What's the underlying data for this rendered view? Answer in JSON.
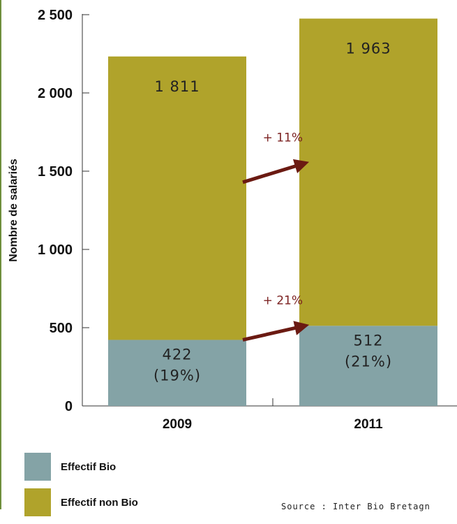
{
  "chart_data": {
    "type": "bar",
    "stacked": true,
    "categories": [
      "2009",
      "2011"
    ],
    "series": [
      {
        "name": "Effectif Bio",
        "color": "#84a3a6",
        "values": [
          422,
          512
        ],
        "labels": [
          "422\n(19%)",
          "512\n(21%)"
        ]
      },
      {
        "name": "Effectif non Bio",
        "color": "#b0a32b",
        "values": [
          1811,
          1963
        ],
        "labels": [
          "1 811",
          "1 963"
        ]
      }
    ],
    "ylabel": "Nombre de salariés",
    "ylim": [
      0,
      2500
    ],
    "yticks": [
      0,
      500,
      1000,
      1500,
      2000,
      2500
    ],
    "ytick_labels": [
      "0",
      "500",
      "1 000",
      "1 500",
      "2 000",
      "2 500"
    ],
    "grid": false,
    "annotations": [
      {
        "text": "+ 11%",
        "series": "Effectif non Bio",
        "color": "#6b1a12"
      },
      {
        "text": "+ 21%",
        "series": "Effectif Bio",
        "color": "#6b1a12"
      }
    ]
  },
  "legend": {
    "items": [
      {
        "label": "Effectif Bio",
        "color": "#84a3a6"
      },
      {
        "label": "Effectif non Bio",
        "color": "#b0a32b"
      }
    ]
  },
  "source": "Source : Inter Bio Bretagn"
}
